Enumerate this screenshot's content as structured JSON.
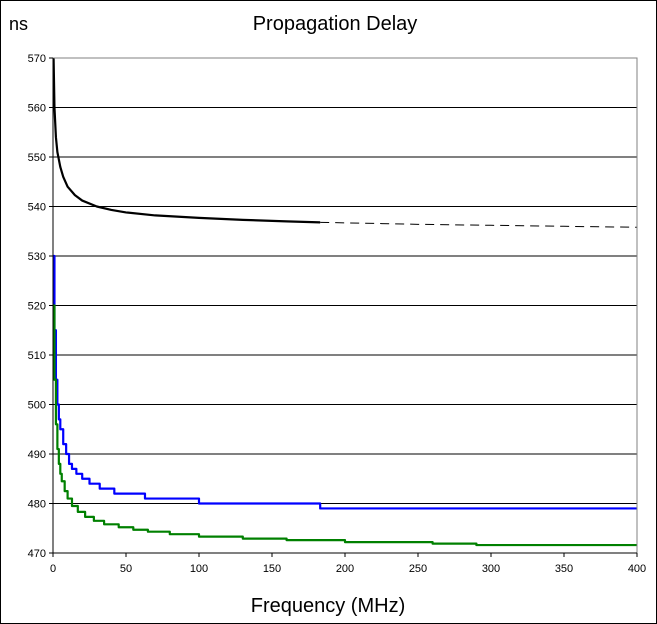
{
  "chart_data": {
    "type": "line",
    "title": "Propagation Delay",
    "ylabel": "ns",
    "xlabel": "Frequency (MHz)",
    "xlim": [
      0,
      400
    ],
    "ylim": [
      470,
      570
    ],
    "x_ticks": [
      "0",
      "50",
      "100",
      "150",
      "200",
      "250",
      "300",
      "350",
      "400"
    ],
    "y_ticks": [
      "470",
      "480",
      "490",
      "500",
      "510",
      "520",
      "530",
      "540",
      "550",
      "560",
      "570"
    ],
    "grid": "horizontal",
    "legend": "none",
    "plot_background": "#ffffff",
    "plot_border_color": "#808080",
    "series": [
      {
        "color": "#000000",
        "style": "solid",
        "x": [
          0.4,
          1,
          2,
          3,
          5,
          7,
          10,
          15,
          20,
          30,
          40,
          50,
          70,
          100,
          130,
          160,
          183
        ],
        "y": [
          570,
          560,
          554,
          551,
          548,
          546,
          544,
          542.3,
          541.2,
          540,
          539.3,
          538.8,
          538.2,
          537.7,
          537.3,
          537,
          536.8
        ]
      },
      {
        "color": "#000000",
        "style": "dashed",
        "x": [
          183,
          250,
          300,
          350,
          400
        ],
        "y": [
          536.8,
          536.4,
          536.2,
          536,
          535.8
        ]
      },
      {
        "color": "#0000ff",
        "style": "step",
        "x": [
          0.3,
          1,
          2,
          3,
          4,
          5,
          7,
          9,
          11,
          13,
          16,
          20,
          25,
          32,
          42,
          63,
          100,
          183,
          400
        ],
        "y": [
          530,
          515,
          505,
          500,
          497,
          495,
          492,
          490,
          488,
          487,
          486,
          485,
          484,
          483,
          482,
          481,
          480,
          479,
          479
        ]
      },
      {
        "color": "#008000",
        "style": "step",
        "x": [
          0.3,
          1,
          2,
          3,
          4,
          5,
          6,
          8,
          10,
          13,
          17,
          22,
          28,
          35,
          45,
          55,
          65,
          80,
          100,
          130,
          160,
          200,
          260,
          290,
          400
        ],
        "y": [
          520,
          505,
          496,
          491,
          488,
          486,
          484.5,
          482.5,
          481,
          479.5,
          478.3,
          477.3,
          476.5,
          475.8,
          475.2,
          474.7,
          474.3,
          473.8,
          473.3,
          472.9,
          472.6,
          472.2,
          471.9,
          471.6,
          471.6
        ]
      }
    ]
  }
}
